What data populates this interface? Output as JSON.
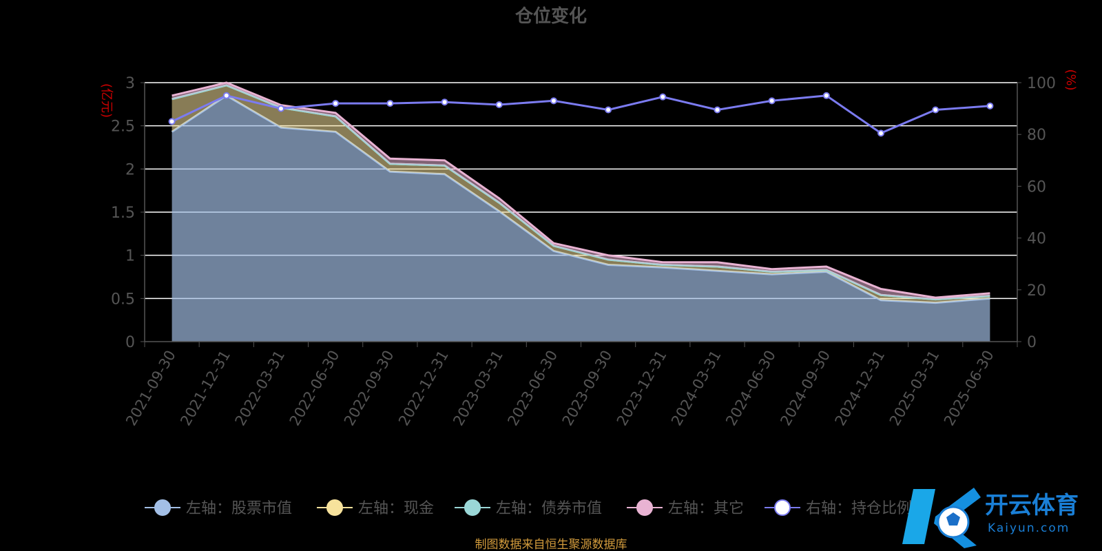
{
  "chart_data": {
    "type": "area",
    "title": "仓位变化",
    "left_axis_unit": "(亿元)",
    "right_axis_unit": "(%)",
    "categories": [
      "2021-09-30",
      "2021-12-31",
      "2022-03-31",
      "2022-06-30",
      "2022-09-30",
      "2022-12-31",
      "2023-03-31",
      "2023-06-30",
      "2023-09-30",
      "2023-12-31",
      "2024-03-31",
      "2024-06-30",
      "2024-09-30",
      "2024-12-31",
      "2025-03-31",
      "2025-06-30"
    ],
    "left_ylim": [
      0,
      3
    ],
    "left_ticks": [
      "0",
      "0.5",
      "1",
      "1.5",
      "2",
      "2.5",
      "3"
    ],
    "right_ylim": [
      0,
      100
    ],
    "right_ticks": [
      "0",
      "20",
      "40",
      "60",
      "80",
      "100"
    ],
    "stacked": true,
    "series": [
      {
        "name": "左轴：股票市值",
        "axis": "left",
        "color": "#a3bfe6",
        "values": [
          2.43,
          2.85,
          2.48,
          2.43,
          1.97,
          1.94,
          1.51,
          1.05,
          0.89,
          0.86,
          0.82,
          0.78,
          0.81,
          0.48,
          0.45,
          0.5
        ]
      },
      {
        "name": "左轴：现金",
        "axis": "left",
        "color": "#f7e29c",
        "values": [
          0.38,
          0.12,
          0.23,
          0.18,
          0.09,
          0.1,
          0.1,
          0.06,
          0.06,
          0.03,
          0.05,
          0.03,
          0.02,
          0.06,
          0.04,
          0.03
        ]
      },
      {
        "name": "左轴：债券市值",
        "axis": "left",
        "color": "#9ad7d7",
        "values": [
          0,
          0,
          0,
          0,
          0,
          0,
          0,
          0,
          0,
          0,
          0,
          0,
          0,
          0,
          0,
          0
        ]
      },
      {
        "name": "左轴：其它",
        "axis": "left",
        "color": "#e9b3d3",
        "values": [
          0.04,
          0.03,
          0.03,
          0.04,
          0.06,
          0.06,
          0.05,
          0.03,
          0.05,
          0.03,
          0.05,
          0.03,
          0.04,
          0.07,
          0.02,
          0.03
        ]
      },
      {
        "name": "右轴：持仓比例",
        "axis": "right",
        "color": "#7b7bf0",
        "values": [
          85,
          95,
          90,
          92,
          92,
          92.5,
          91.5,
          93,
          89.5,
          94.5,
          89.5,
          93,
          95,
          80.5,
          89.5,
          91
        ]
      }
    ],
    "legend_position": "bottom",
    "grid": true,
    "source_note": "制图数据来自恒生聚源数据库"
  },
  "watermark": {
    "brand": "开云体育",
    "domain": "Kaiyun.com",
    "logo_letter": "K"
  }
}
